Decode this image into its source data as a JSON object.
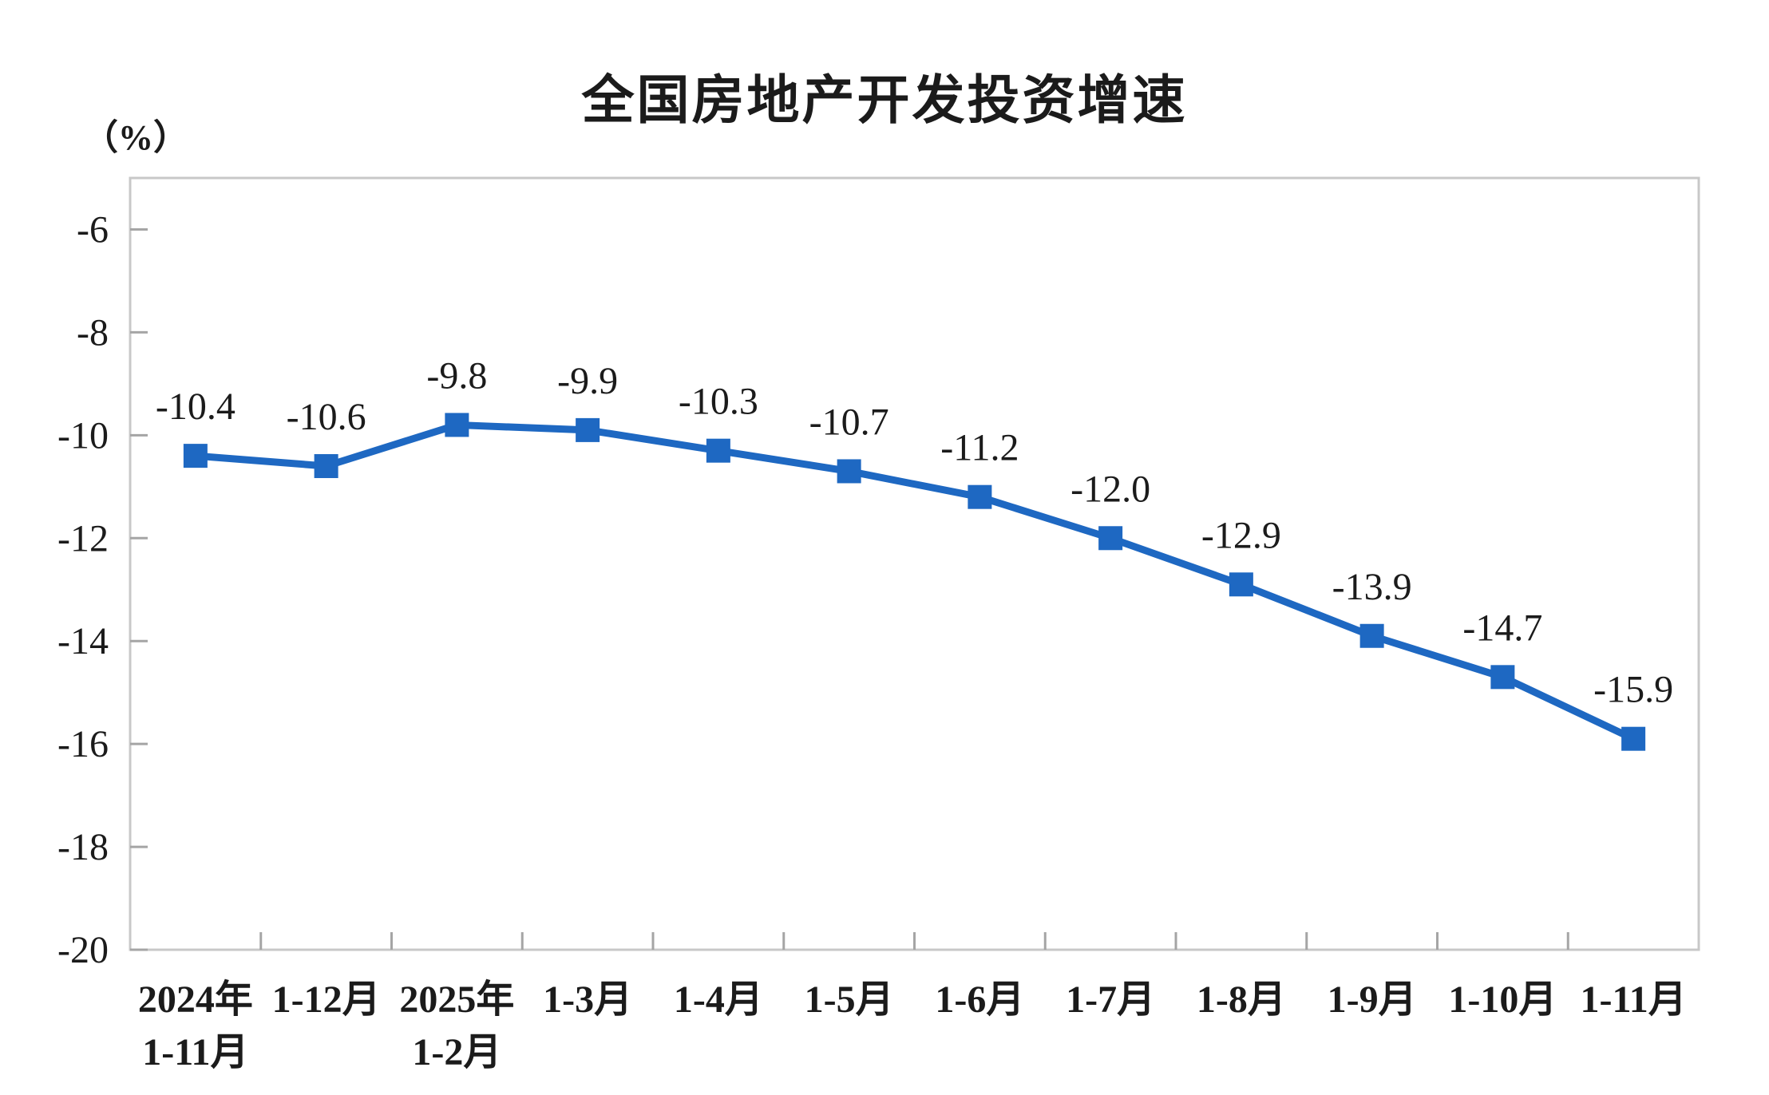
{
  "chart_data": {
    "type": "line",
    "title": "全国房地产开发投资增速",
    "unit_label": "（%）",
    "categories": [
      [
        "2024年",
        "1-11月"
      ],
      [
        "1-12月"
      ],
      [
        "2025年",
        "1-2月"
      ],
      [
        "1-3月"
      ],
      [
        "1-4月"
      ],
      [
        "1-5月"
      ],
      [
        "1-6月"
      ],
      [
        "1-7月"
      ],
      [
        "1-8月"
      ],
      [
        "1-9月"
      ],
      [
        "1-10月"
      ],
      [
        "1-11月"
      ]
    ],
    "values": [
      -10.4,
      -10.6,
      -9.8,
      -9.9,
      -10.3,
      -10.7,
      -11.2,
      -12.0,
      -12.9,
      -13.9,
      -14.7,
      -15.9
    ],
    "data_labels": [
      "-10.4",
      "-10.6",
      "-9.8",
      "-9.9",
      "-10.3",
      "-10.7",
      "-11.2",
      "-12.0",
      "-12.9",
      "-13.9",
      "-14.7",
      "-15.9"
    ],
    "y_ticks": [
      -6,
      -8,
      -10,
      -12,
      -14,
      -16,
      -18,
      -20
    ],
    "ylim": [
      -20,
      -5
    ],
    "grid": false,
    "legend": false,
    "colors": {
      "line": "#1e68c2",
      "marker": "#1e68c2",
      "border": "#c8c8c8",
      "tick": "#a5a5a5",
      "text": "#1b1b1b"
    }
  }
}
